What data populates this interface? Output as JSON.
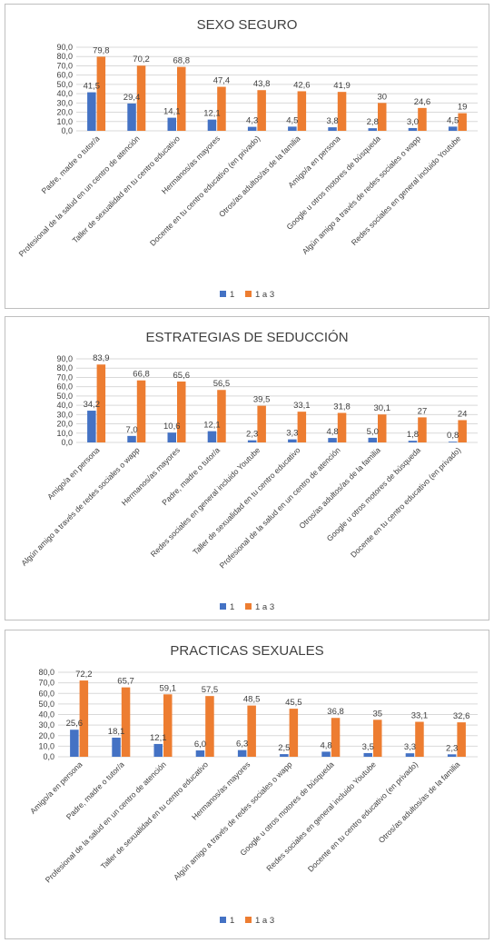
{
  "colors": {
    "s1": "#4472C4",
    "s2": "#ED7D31"
  },
  "chart_data": [
    {
      "type": "bar",
      "title": "SEXO SEGURO",
      "ylim": [
        0,
        90
      ],
      "yticks": [
        "0,0",
        "10,0",
        "20,0",
        "30,0",
        "40,0",
        "50,0",
        "60,0",
        "70,0",
        "80,0",
        "90,0"
      ],
      "categories": [
        "Padre, madre o tutor/a",
        "Profesional de la salud en un centro de atención",
        "Taller de sexualidad en tu centro educativo",
        "Hermanos/as mayores",
        "Docente en tu centro educativo (en privado)",
        "Otros/as adultos/as de la familia",
        "Amigo/a en persona",
        "Google u otros motores de búsqueda",
        "Algún amigo a través de redes sociales o wapp",
        "Redes sociales en general incluido Youtube"
      ],
      "series": [
        {
          "name": "1",
          "values": [
            41.5,
            29.4,
            14.1,
            12.1,
            4.3,
            4.5,
            3.8,
            2.8,
            3.0,
            4.5
          ],
          "labels": [
            "41,5",
            "29,4",
            "14,1",
            "12,1",
            "4,3",
            "4,5",
            "3,8",
            "2,8",
            "3,0",
            "4,5"
          ]
        },
        {
          "name": "1 a 3",
          "values": [
            79.8,
            70.2,
            68.8,
            47.4,
            43.8,
            42.6,
            41.9,
            30,
            24.6,
            19
          ],
          "labels": [
            "79,8",
            "70,2",
            "68,8",
            "47,4",
            "43,8",
            "42,6",
            "41,9",
            "30",
            "24,6",
            "19"
          ]
        }
      ],
      "legend": "bottom",
      "grid": true
    },
    {
      "type": "bar",
      "title": "ESTRATEGIAS DE SEDUCCIÓN",
      "ylim": [
        0,
        90
      ],
      "yticks": [
        "0,0",
        "10,0",
        "20,0",
        "30,0",
        "40,0",
        "50,0",
        "60,0",
        "70,0",
        "80,0",
        "90,0"
      ],
      "categories": [
        "Amigo/a en persona",
        "Algún amigo a través de redes sociales o wapp",
        "Hermanos/as mayores",
        "Padre, madre o tutor/a",
        "Redes sociales en general incluido Youtube",
        "Taller de sexualidad en tu centro educativo",
        "Profesional de la salud en un centro de atención",
        "Otros/as adultos/as de la familia",
        "Google u otros motores de búsqueda",
        "Docente en tu centro educativo (en privado)"
      ],
      "series": [
        {
          "name": "1",
          "values": [
            34.2,
            7.0,
            10.6,
            12.1,
            2.3,
            3.3,
            4.8,
            5.0,
            1.8,
            0.8
          ],
          "labels": [
            "34,2",
            "7,0",
            "10,6",
            "12,1",
            "2,3",
            "3,3",
            "4,8",
            "5,0",
            "1,8",
            "0,8"
          ]
        },
        {
          "name": "1 a 3",
          "values": [
            83.9,
            66.8,
            65.6,
            56.5,
            39.5,
            33.1,
            31.8,
            30.1,
            27,
            24
          ],
          "labels": [
            "83,9",
            "66,8",
            "65,6",
            "56,5",
            "39,5",
            "33,1",
            "31,8",
            "30,1",
            "27",
            "24"
          ]
        }
      ],
      "legend": "bottom",
      "grid": true
    },
    {
      "type": "bar",
      "title": "PRACTICAS SEXUALES",
      "ylim": [
        0,
        80
      ],
      "yticks": [
        "0,0",
        "10,0",
        "20,0",
        "30,0",
        "40,0",
        "50,0",
        "60,0",
        "70,0",
        "80,0"
      ],
      "categories": [
        "Amigo/a en persona",
        "Padre, madre o tutor/a",
        "Profesional de la salud en un centro de atención",
        "Taller de sexualidad en tu centro educativo",
        "Hermanos/as mayores",
        "Algún amigo a través de redes sociales o wapp",
        "Google u otros motores de búsqueda",
        "Redes sociales en general incluido Youtube",
        "Docente en tu centro educativo (en privado)",
        "Otros/as adultos/as de la familia"
      ],
      "series": [
        {
          "name": "1",
          "values": [
            25.6,
            18.1,
            12.1,
            6.0,
            6.3,
            2.5,
            4.8,
            3.5,
            3.3,
            2.3
          ],
          "labels": [
            "25,6",
            "18,1",
            "12,1",
            "6,0",
            "6,3",
            "2,5",
            "4,8",
            "3,5",
            "3,3",
            "2,3"
          ]
        },
        {
          "name": "1 a 3",
          "values": [
            72.2,
            65.7,
            59.1,
            57.5,
            48.5,
            45.5,
            36.8,
            35,
            33.1,
            32.6
          ],
          "labels": [
            "72,2",
            "65,7",
            "59,1",
            "57,5",
            "48,5",
            "45,5",
            "36,8",
            "35",
            "33,1",
            "32,6"
          ]
        }
      ],
      "legend": "bottom",
      "grid": true
    }
  ]
}
